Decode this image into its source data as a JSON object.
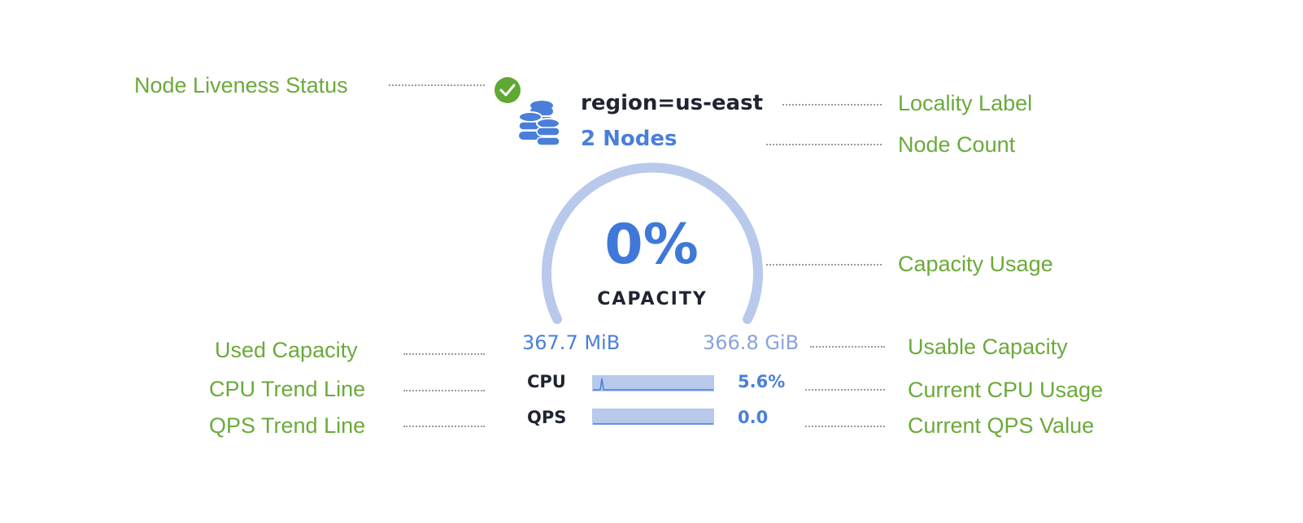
{
  "node": {
    "liveness_icon": "check-circle-icon",
    "node_icon": "database-stack-icon",
    "locality": "region=us-east",
    "node_count": "2 Nodes",
    "capacity_percent": "0%",
    "capacity_label": "CAPACITY",
    "capacity_fraction": 0,
    "used_capacity": "367.7 MiB",
    "usable_capacity": "366.8 GiB",
    "cpu_label": "CPU",
    "cpu_value": "5.6%",
    "qps_label": "QPS",
    "qps_value": "0.0"
  },
  "annotations": {
    "liveness": "Node Liveness Status",
    "locality": "Locality Label",
    "node_count": "Node Count",
    "capacity_usage": "Capacity Usage",
    "used_capacity": "Used Capacity",
    "usable_capacity": "Usable Capacity",
    "cpu_trend": "CPU Trend Line",
    "current_cpu": "Current CPU Usage",
    "qps_trend": "QPS Trend Line",
    "current_qps": "Current QPS Value"
  },
  "colors": {
    "annotation": "#6aaa3a",
    "accent": "#4a7fd9",
    "gauge_track": "#b8c9ec",
    "status_ok": "#5fa832"
  }
}
